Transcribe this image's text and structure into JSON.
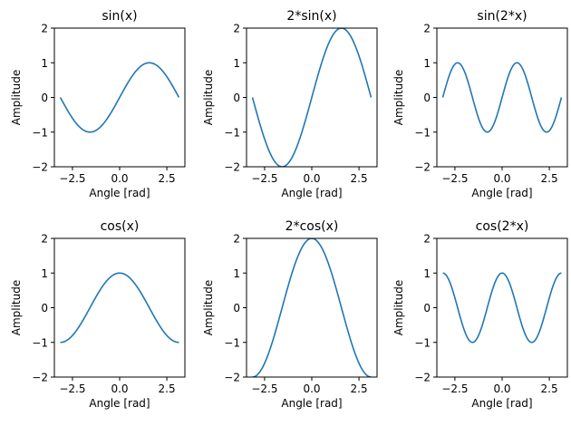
{
  "chart_data": [
    {
      "type": "line",
      "title": "sin(x)",
      "function": "sin",
      "amplitude": 1,
      "frequency": 1,
      "x_range": [
        -3.14159,
        3.14159
      ],
      "xlabel": "Angle [rad]",
      "ylabel": "Amplitude",
      "xlim": [
        -3.456,
        3.456
      ],
      "ylim": [
        -2,
        2
      ],
      "xticks": [
        -2.5,
        0.0,
        2.5
      ],
      "xtick_labels": [
        "−2.5",
        "0.0",
        "2.5"
      ],
      "yticks": [
        -2,
        -1,
        0,
        1,
        2
      ],
      "ytick_labels": [
        "−2",
        "−1",
        "0",
        "1",
        "2"
      ],
      "color": "#1f77b4",
      "grid": false
    },
    {
      "type": "line",
      "title": "2*sin(x)",
      "function": "sin",
      "amplitude": 2,
      "frequency": 1,
      "x_range": [
        -3.14159,
        3.14159
      ],
      "xlabel": "Angle [rad]",
      "ylabel": "Amplitude",
      "xlim": [
        -3.456,
        3.456
      ],
      "ylim": [
        -2,
        2
      ],
      "xticks": [
        -2.5,
        0.0,
        2.5
      ],
      "xtick_labels": [
        "−2.5",
        "0.0",
        "2.5"
      ],
      "yticks": [
        -2,
        -1,
        0,
        1,
        2
      ],
      "ytick_labels": [
        "−2",
        "−1",
        "0",
        "1",
        "2"
      ],
      "color": "#1f77b4",
      "grid": false
    },
    {
      "type": "line",
      "title": "sin(2*x)",
      "function": "sin",
      "amplitude": 1,
      "frequency": 2,
      "x_range": [
        -3.14159,
        3.14159
      ],
      "xlabel": "Angle [rad]",
      "ylabel": "Amplitude",
      "xlim": [
        -3.456,
        3.456
      ],
      "ylim": [
        -2,
        2
      ],
      "xticks": [
        -2.5,
        0.0,
        2.5
      ],
      "xtick_labels": [
        "−2.5",
        "0.0",
        "2.5"
      ],
      "yticks": [
        -2,
        -1,
        0,
        1,
        2
      ],
      "ytick_labels": [
        "−2",
        "−1",
        "0",
        "1",
        "2"
      ],
      "color": "#1f77b4",
      "grid": false
    },
    {
      "type": "line",
      "title": "cos(x)",
      "function": "cos",
      "amplitude": 1,
      "frequency": 1,
      "x_range": [
        -3.14159,
        3.14159
      ],
      "xlabel": "Angle [rad]",
      "ylabel": "Amplitude",
      "xlim": [
        -3.456,
        3.456
      ],
      "ylim": [
        -2,
        2
      ],
      "xticks": [
        -2.5,
        0.0,
        2.5
      ],
      "xtick_labels": [
        "−2.5",
        "0.0",
        "2.5"
      ],
      "yticks": [
        -2,
        -1,
        0,
        1,
        2
      ],
      "ytick_labels": [
        "−2",
        "−1",
        "0",
        "1",
        "2"
      ],
      "color": "#1f77b4",
      "grid": false
    },
    {
      "type": "line",
      "title": "2*cos(x)",
      "function": "cos",
      "amplitude": 2,
      "frequency": 1,
      "x_range": [
        -3.14159,
        3.14159
      ],
      "xlabel": "Angle [rad]",
      "ylabel": "Amplitude",
      "xlim": [
        -3.456,
        3.456
      ],
      "ylim": [
        -2,
        2
      ],
      "xticks": [
        -2.5,
        0.0,
        2.5
      ],
      "xtick_labels": [
        "−2.5",
        "0.0",
        "2.5"
      ],
      "yticks": [
        -2,
        -1,
        0,
        1,
        2
      ],
      "ytick_labels": [
        "−2",
        "−1",
        "0",
        "1",
        "2"
      ],
      "color": "#1f77b4",
      "grid": false
    },
    {
      "type": "line",
      "title": "cos(2*x)",
      "function": "cos",
      "amplitude": 1,
      "frequency": 2,
      "x_range": [
        -3.14159,
        3.14159
      ],
      "xlabel": "Angle [rad]",
      "ylabel": "Amplitude",
      "xlim": [
        -3.456,
        3.456
      ],
      "ylim": [
        -2,
        2
      ],
      "xticks": [
        -2.5,
        0.0,
        2.5
      ],
      "xtick_labels": [
        "−2.5",
        "0.0",
        "2.5"
      ],
      "yticks": [
        -2,
        -1,
        0,
        1,
        2
      ],
      "ytick_labels": [
        "−2",
        "−1",
        "0",
        "1",
        "2"
      ],
      "color": "#1f77b4",
      "grid": false
    }
  ]
}
